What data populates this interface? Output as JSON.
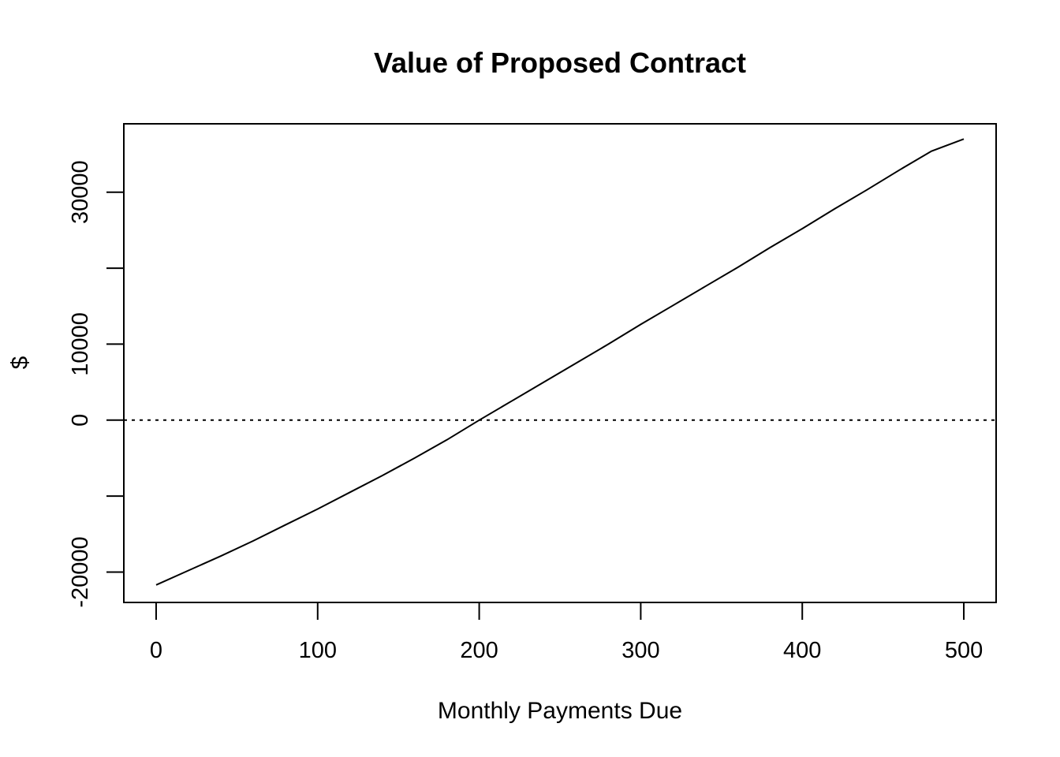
{
  "chart_data": {
    "type": "line",
    "title": "Value of Proposed Contract",
    "xlabel": "Monthly Payments Due",
    "ylabel": "$",
    "xlim": [
      -20,
      520
    ],
    "ylim": [
      -24000,
      39000
    ],
    "x_ticks": [
      0,
      100,
      200,
      300,
      400,
      500
    ],
    "x_tick_labels": [
      "0",
      "100",
      "200",
      "300",
      "400",
      "500"
    ],
    "y_ticks": [
      -20000,
      -10000,
      0,
      10000,
      20000,
      30000
    ],
    "y_tick_labels": [
      "-20000",
      "",
      "0",
      "10000",
      "",
      "30000"
    ],
    "grid": false,
    "legend": "none",
    "reference_line": {
      "y": 0,
      "style": "dotted"
    },
    "series": [
      {
        "x": [
          0,
          20,
          40,
          60,
          80,
          100,
          120,
          140,
          160,
          180,
          200,
          220,
          240,
          260,
          280,
          300,
          320,
          340,
          360,
          380,
          400,
          420,
          440,
          460,
          480,
          500
        ],
        "values": [
          -21700,
          -19800,
          -17900,
          -15900,
          -13800,
          -11700,
          -9500,
          -7300,
          -5000,
          -2600,
          0,
          2500,
          5000,
          7500,
          10000,
          12600,
          15100,
          17600,
          20100,
          22700,
          25200,
          27800,
          30300,
          32900,
          35400,
          37000
        ]
      }
    ]
  }
}
